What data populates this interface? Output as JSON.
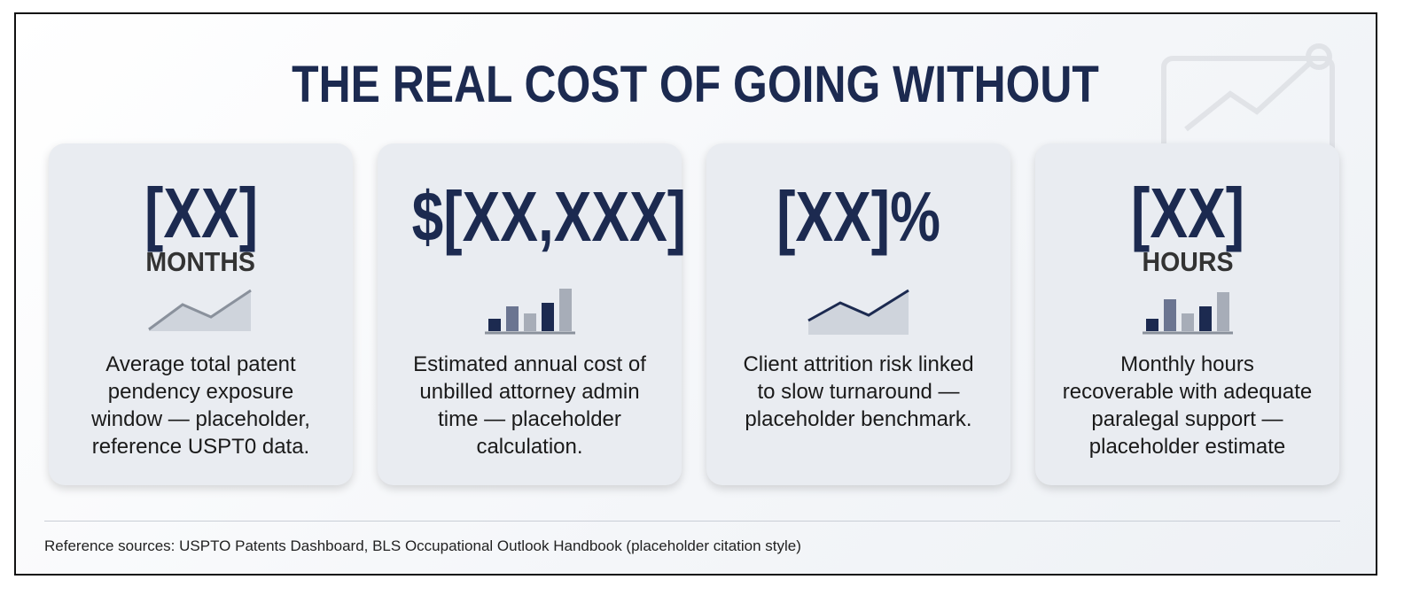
{
  "header": {
    "title": "THE REAL COST OF GOING WITHOUT"
  },
  "cards": [
    {
      "value": "[XX]",
      "unit": "MONTHS",
      "description": [
        "Average total patent",
        "pendency exposure",
        "window — placeholder,",
        "reference USPT0 data."
      ]
    },
    {
      "value": "$[XX,XXX]",
      "description": [
        "Estimated annual cost of",
        "unbilled attorney admin",
        "time — placeholder",
        "calculation."
      ]
    },
    {
      "value": "[XX]%",
      "description": [
        "Client attrition risk linked",
        "to slow turnaround —",
        "placeholder benchmark."
      ]
    },
    {
      "value": "[XX]",
      "unit": "HOURS",
      "description": [
        "Monthly hours",
        "recoverable with adequate",
        "paralegal support —",
        "placeholder estimate"
      ]
    }
  ],
  "footer": {
    "source": "Reference sources: USPTO Patents Dashboard, BLS Occupational Outlook Handbook (placeholder citation style)"
  }
}
